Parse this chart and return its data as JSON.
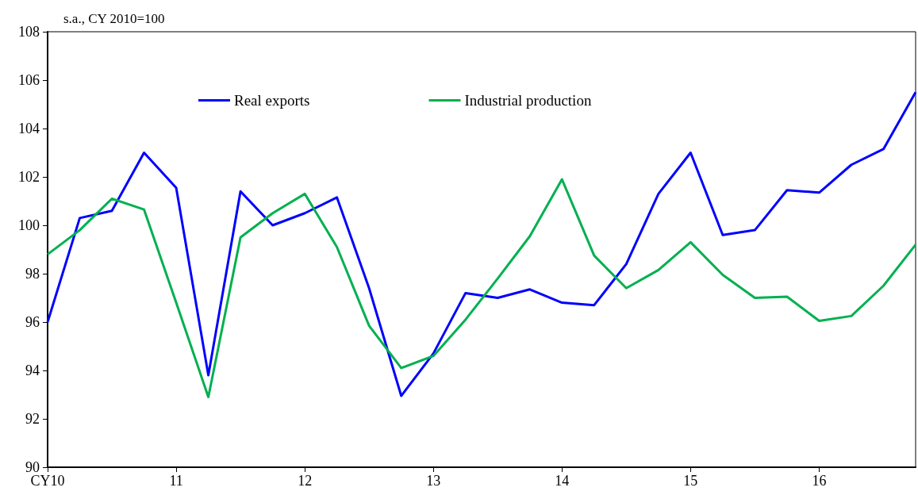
{
  "chart_data": {
    "type": "line",
    "ylabel": "s.a., CY 2010=100",
    "categories": [
      "CY10",
      null,
      null,
      null,
      "11",
      null,
      null,
      null,
      "12",
      null,
      null,
      null,
      "13",
      null,
      null,
      null,
      "14",
      null,
      null,
      null,
      "15",
      null,
      null,
      null,
      "16",
      null,
      null,
      null
    ],
    "series": [
      {
        "name": "Real exports",
        "color": "#0000ff",
        "values": [
          96.0,
          100.3,
          100.6,
          103.0,
          101.55,
          93.8,
          101.4,
          100.0,
          100.5,
          101.15,
          97.4,
          92.95,
          94.7,
          97.2,
          97.0,
          97.35,
          96.8,
          96.7,
          98.4,
          101.3,
          103.0,
          99.6,
          99.8,
          101.45,
          101.35,
          102.5,
          103.15,
          105.5
        ]
      },
      {
        "name": "Industrial production",
        "color": "#00b050",
        "values": [
          98.8,
          99.8,
          101.1,
          100.65,
          96.8,
          92.9,
          99.5,
          100.5,
          101.3,
          99.1,
          95.85,
          94.1,
          94.6,
          96.1,
          97.8,
          99.55,
          101.9,
          98.75,
          97.4,
          98.15,
          99.3,
          97.95,
          97.0,
          97.05,
          96.05,
          96.25,
          97.5,
          99.2
        ]
      }
    ],
    "ylim": [
      90,
      108
    ],
    "yticks": [
      90,
      92,
      94,
      96,
      98,
      100,
      102,
      104,
      106,
      108
    ],
    "grid": false,
    "legend": "top left",
    "marker": "none",
    "line_style": "solid"
  }
}
